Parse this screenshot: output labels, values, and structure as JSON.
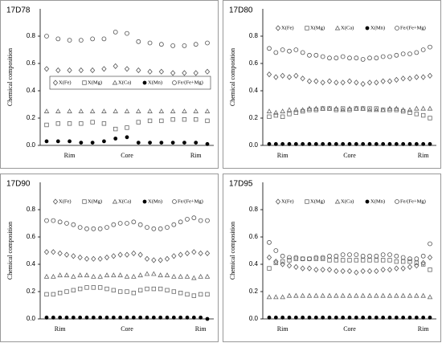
{
  "chart_data": [
    {
      "type": "scatter",
      "title": "17D78",
      "y_label": "Chemical composition",
      "legend_position": "center",
      "categories": [
        null,
        null,
        "Rim",
        null,
        null,
        null,
        null,
        "Core",
        null,
        null,
        null,
        null,
        null,
        "Rim",
        null
      ],
      "ylim": [
        0,
        1.0
      ],
      "yticks": [
        {
          "value": 0,
          "label": "0.0"
        },
        0.2,
        0.4,
        0.6,
        0.8
      ],
      "series": [
        {
          "name": "X(Fe)",
          "marker": "diamond",
          "color": "#555555",
          "values": [
            0.56,
            0.55,
            0.55,
            0.55,
            0.55,
            0.56,
            0.58,
            0.56,
            0.55,
            0.54,
            0.54,
            0.53,
            0.53,
            0.53,
            0.54
          ]
        },
        {
          "name": "X(Mg)",
          "marker": "square",
          "color": "#666666",
          "values": [
            0.15,
            0.16,
            0.16,
            0.16,
            0.17,
            0.16,
            0.12,
            0.13,
            0.17,
            0.18,
            0.18,
            0.19,
            0.19,
            0.19,
            0.18
          ]
        },
        {
          "name": "X(Ca)",
          "marker": "triangle",
          "color": "#666666",
          "values": [
            0.25,
            0.25,
            0.25,
            0.25,
            0.25,
            0.25,
            0.25,
            0.25,
            0.25,
            0.25,
            0.25,
            0.25,
            0.25,
            0.25,
            0.25
          ]
        },
        {
          "name": "X(Mn)",
          "marker": "dot",
          "color": "#000000",
          "values": [
            0.03,
            0.03,
            0.03,
            0.02,
            0.02,
            0.03,
            0.05,
            0.06,
            0.02,
            0.02,
            0.02,
            0.02,
            0.02,
            0.02,
            0.01
          ]
        },
        {
          "name": "Fe/(Fe+Mg)",
          "marker": "circle",
          "color": "#555555",
          "values": [
            0.8,
            0.78,
            0.77,
            0.77,
            0.78,
            0.78,
            0.83,
            0.82,
            0.76,
            0.75,
            0.74,
            0.73,
            0.73,
            0.74,
            0.75
          ]
        }
      ]
    },
    {
      "type": "scatter",
      "title": "17D80",
      "y_label": "Chemical composition",
      "legend_position": "top",
      "categories": [
        null,
        null,
        "Rim",
        null,
        null,
        null,
        null,
        null,
        null,
        null,
        null,
        null,
        "Core",
        null,
        null,
        null,
        null,
        null,
        null,
        null,
        null,
        null,
        null,
        "Rim",
        null
      ],
      "ylim": [
        0,
        1.0
      ],
      "yticks": [
        {
          "value": 0,
          "label": "0.0"
        },
        0.2,
        0.4,
        0.6,
        0.8
      ],
      "series": [
        {
          "name": "X(Fe)",
          "marker": "diamond",
          "color": "#555555",
          "values": [
            0.52,
            0.5,
            0.51,
            0.5,
            0.51,
            0.49,
            0.47,
            0.47,
            0.46,
            0.47,
            0.46,
            0.46,
            0.47,
            0.46,
            0.45,
            0.46,
            0.46,
            0.47,
            0.47,
            0.48,
            0.49,
            0.49,
            0.5,
            0.5,
            0.51
          ]
        },
        {
          "name": "X(Mg)",
          "marker": "square",
          "color": "#666666",
          "values": [
            0.21,
            0.22,
            0.21,
            0.23,
            0.24,
            0.25,
            0.26,
            0.26,
            0.27,
            0.27,
            0.26,
            0.27,
            0.26,
            0.27,
            0.27,
            0.27,
            0.27,
            0.26,
            0.26,
            0.26,
            0.25,
            0.24,
            0.23,
            0.22,
            0.2
          ]
        },
        {
          "name": "X(Ca)",
          "marker": "triangle",
          "color": "#666666",
          "values": [
            0.25,
            0.24,
            0.25,
            0.26,
            0.26,
            0.26,
            0.27,
            0.27,
            0.27,
            0.27,
            0.27,
            0.26,
            0.27,
            0.27,
            0.27,
            0.26,
            0.26,
            0.26,
            0.27,
            0.27,
            0.26,
            0.26,
            0.27,
            0.27,
            0.27
          ]
        },
        {
          "name": "X(Mn)",
          "marker": "dot",
          "color": "#000000",
          "values": [
            0.01,
            0.01,
            0.01,
            0.01,
            0.01,
            0.01,
            0.01,
            0.01,
            0.01,
            0.01,
            0.01,
            0.01,
            0.01,
            0.01,
            0.01,
            0.01,
            0.01,
            0.01,
            0.01,
            0.01,
            0.01,
            0.01,
            0.01,
            0.01,
            0.01
          ]
        },
        {
          "name": "Fe/(Fe+Mg)",
          "marker": "circle",
          "color": "#555555",
          "values": [
            0.71,
            0.68,
            0.7,
            0.69,
            0.7,
            0.68,
            0.66,
            0.66,
            0.65,
            0.64,
            0.64,
            0.65,
            0.64,
            0.64,
            0.63,
            0.64,
            0.64,
            0.65,
            0.65,
            0.66,
            0.67,
            0.67,
            0.68,
            0.7,
            0.72
          ]
        }
      ]
    },
    {
      "type": "scatter",
      "title": "17D90",
      "y_label": "Chemical composition",
      "legend_position": "top",
      "categories": [
        null,
        null,
        "Rim",
        null,
        null,
        null,
        null,
        null,
        null,
        null,
        null,
        null,
        "Core",
        null,
        null,
        null,
        null,
        null,
        null,
        null,
        null,
        null,
        null,
        "Rim",
        null
      ],
      "ylim": [
        0,
        1.0
      ],
      "yticks": [
        {
          "value": 0,
          "label": "0.0"
        },
        0.2,
        0.4,
        0.6,
        0.8
      ],
      "series": [
        {
          "name": "X(Fe)",
          "marker": "diamond",
          "color": "#555555",
          "values": [
            0.49,
            0.49,
            0.48,
            0.47,
            0.46,
            0.45,
            0.44,
            0.44,
            0.44,
            0.45,
            0.46,
            0.47,
            0.47,
            0.48,
            0.47,
            0.44,
            0.43,
            0.43,
            0.44,
            0.46,
            0.47,
            0.48,
            0.49,
            0.48,
            0.48
          ]
        },
        {
          "name": "X(Mg)",
          "marker": "square",
          "color": "#666666",
          "values": [
            0.18,
            0.18,
            0.19,
            0.2,
            0.21,
            0.22,
            0.23,
            0.23,
            0.23,
            0.22,
            0.21,
            0.2,
            0.2,
            0.19,
            0.21,
            0.22,
            0.22,
            0.22,
            0.21,
            0.2,
            0.19,
            0.18,
            0.17,
            0.18,
            0.18
          ]
        },
        {
          "name": "X(Ca)",
          "marker": "triangle",
          "color": "#666666",
          "values": [
            0.31,
            0.31,
            0.32,
            0.32,
            0.31,
            0.32,
            0.32,
            0.31,
            0.31,
            0.32,
            0.32,
            0.32,
            0.31,
            0.31,
            0.32,
            0.33,
            0.33,
            0.32,
            0.32,
            0.31,
            0.31,
            0.31,
            0.3,
            0.31,
            0.31
          ]
        },
        {
          "name": "X(Mn)",
          "marker": "dot",
          "color": "#000000",
          "values": [
            0.01,
            0.01,
            0.01,
            0.01,
            0.01,
            0.01,
            0.01,
            0.01,
            0.01,
            0.01,
            0.01,
            0.01,
            0.01,
            0.01,
            0.01,
            0.01,
            0.01,
            0.01,
            0.01,
            0.01,
            0.01,
            0.01,
            0.01,
            0.01,
            0
          ]
        },
        {
          "name": "Fe/(Fe+Mg)",
          "marker": "circle",
          "color": "#555555",
          "values": [
            0.72,
            0.72,
            0.71,
            0.7,
            0.69,
            0.67,
            0.66,
            0.66,
            0.66,
            0.67,
            0.69,
            0.7,
            0.7,
            0.71,
            0.69,
            0.67,
            0.66,
            0.66,
            0.67,
            0.69,
            0.71,
            0.73,
            0.74,
            0.72,
            0.72
          ]
        }
      ]
    },
    {
      "type": "scatter",
      "title": "17D95",
      "y_label": "Chemical composition",
      "legend_position": "top",
      "categories": [
        null,
        null,
        "Rim",
        null,
        null,
        null,
        null,
        null,
        null,
        null,
        null,
        null,
        "Core",
        null,
        null,
        null,
        null,
        null,
        null,
        null,
        null,
        null,
        null,
        "Rim",
        null
      ],
      "ylim": [
        0,
        1.0
      ],
      "yticks": [
        {
          "value": 0,
          "label": "0.0"
        },
        0.2,
        0.4,
        0.6,
        0.8
      ],
      "series": [
        {
          "name": "X(Fe)",
          "marker": "diamond",
          "color": "#555555",
          "values": [
            0.45,
            0.42,
            0.4,
            0.39,
            0.38,
            0.37,
            0.37,
            0.36,
            0.36,
            0.36,
            0.35,
            0.35,
            0.35,
            0.34,
            0.35,
            0.35,
            0.35,
            0.36,
            0.36,
            0.37,
            0.37,
            0.38,
            0.39,
            0.41,
            0.45
          ]
        },
        {
          "name": "X(Mg)",
          "marker": "square",
          "color": "#666666",
          "values": [
            0.37,
            0.41,
            0.42,
            0.43,
            0.44,
            0.44,
            0.44,
            0.44,
            0.44,
            0.43,
            0.43,
            0.43,
            0.43,
            0.43,
            0.43,
            0.43,
            0.43,
            0.43,
            0.43,
            0.42,
            0.42,
            0.42,
            0.41,
            0.4,
            0.36
          ]
        },
        {
          "name": "X(Ca)",
          "marker": "triangle",
          "color": "#666666",
          "values": [
            0.16,
            0.16,
            0.16,
            0.17,
            0.17,
            0.17,
            0.17,
            0.17,
            0.17,
            0.17,
            0.17,
            0.17,
            0.17,
            0.17,
            0.17,
            0.17,
            0.17,
            0.17,
            0.17,
            0.17,
            0.17,
            0.17,
            0.17,
            0.17,
            0.16
          ]
        },
        {
          "name": "X(Mn)",
          "marker": "dot",
          "color": "#000000",
          "values": [
            0.01,
            0.01,
            0.01,
            0.01,
            0.01,
            0.01,
            0.01,
            0.01,
            0.01,
            0.01,
            0.01,
            0.01,
            0.01,
            0.01,
            0.01,
            0.01,
            0.01,
            0.01,
            0.01,
            0.01,
            0.01,
            0.01,
            0.01,
            0.01,
            0.01
          ]
        },
        {
          "name": "Fe/(Fe+Mg)",
          "marker": "circle",
          "color": "#555555",
          "values": [
            0.56,
            0.5,
            0.46,
            0.45,
            0.45,
            0.44,
            0.44,
            0.45,
            0.45,
            0.46,
            0.46,
            0.47,
            0.47,
            0.47,
            0.46,
            0.46,
            0.46,
            0.47,
            0.47,
            0.46,
            0.45,
            0.44,
            0.44,
            0.46,
            0.55
          ]
        }
      ]
    }
  ]
}
